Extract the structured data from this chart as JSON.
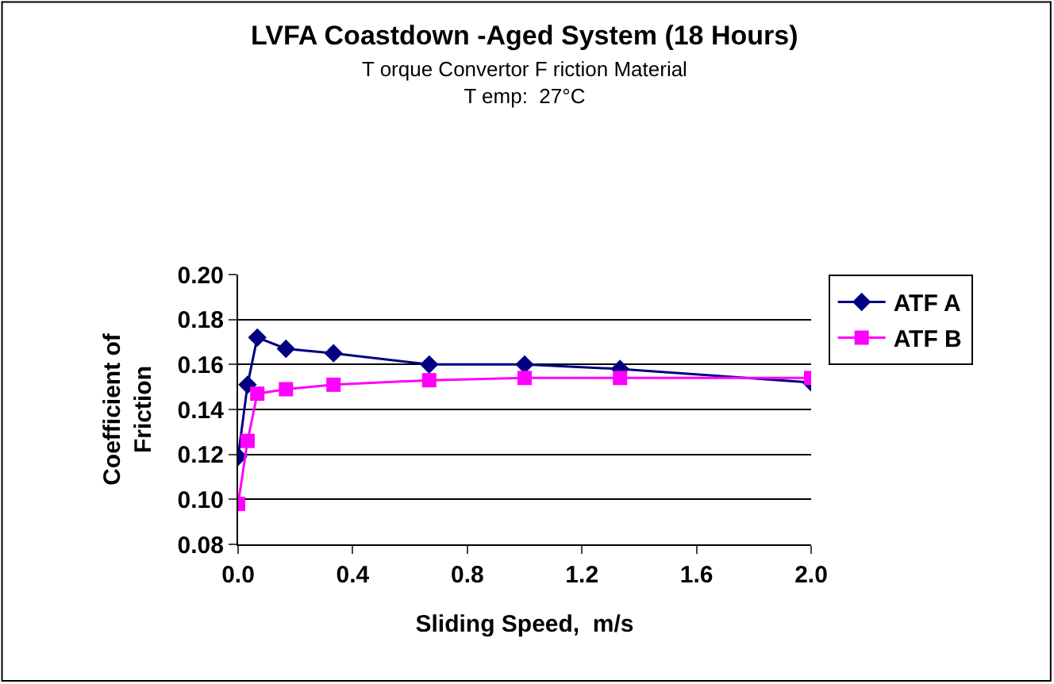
{
  "chart_data": {
    "type": "line",
    "title": "LVFA Coastdown -Aged System (18 Hours)",
    "subtitle": "T orque Convertor F riction Material\nT emp:  27°C",
    "xlabel": "Sliding Speed,  m/s",
    "ylabel": "Coefficient of\nFriction",
    "x": [
      0,
      0.033,
      0.067,
      0.167,
      0.333,
      0.667,
      1.0,
      1.333,
      2.0
    ],
    "series": [
      {
        "name": "ATF A",
        "color": "#000080",
        "marker": "diamond",
        "values": [
          0.119,
          0.151,
          0.172,
          0.167,
          0.165,
          0.16,
          0.16,
          0.158,
          0.152
        ]
      },
      {
        "name": "ATF B",
        "color": "#ff00ff",
        "marker": "square",
        "values": [
          0.098,
          0.126,
          0.147,
          0.149,
          0.151,
          0.153,
          0.154,
          0.154,
          0.154
        ]
      }
    ],
    "xlim": [
      0,
      2.0
    ],
    "xticks": [
      {
        "value": 0,
        "label": "0.0"
      },
      0.4,
      0.8,
      1.2,
      1.6,
      {
        "value": 2,
        "label": "2.0"
      }
    ],
    "ylim": [
      0.08,
      0.2
    ],
    "yticks": [
      0.08,
      {
        "value": 0.1,
        "label": "0.10"
      },
      0.12,
      0.14,
      0.16,
      0.18,
      {
        "value": 0.2,
        "label": "0.20"
      }
    ],
    "grid": "y",
    "legend": "right",
    "line_style": "solid"
  }
}
